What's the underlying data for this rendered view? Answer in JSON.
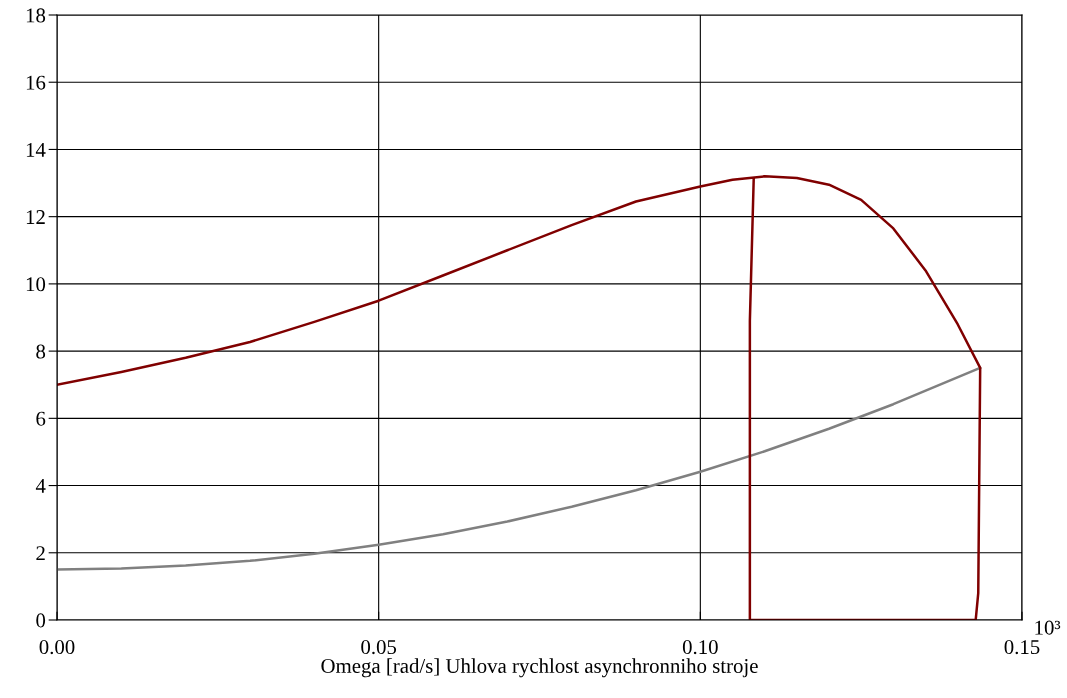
{
  "chart_data": {
    "type": "line",
    "xlabel": "Omega [rad/s] Uhlova rychlost asynchronniho stroje",
    "xlim": [
      0,
      0.15
    ],
    "xticks": [
      {
        "value": 0,
        "label": "0.00"
      },
      {
        "value": 0.05,
        "label": "0.05"
      },
      {
        "value": 0.1,
        "label": "0.10"
      },
      {
        "value": 0.15,
        "label": "0.15"
      }
    ],
    "ylim": [
      0,
      18
    ],
    "yticks": [
      0,
      2,
      4,
      6,
      8,
      10,
      12,
      14,
      16,
      18
    ],
    "grid": true,
    "line_style": "solid",
    "marker": "none",
    "annotations": [
      "10³"
    ],
    "series": [
      {
        "color": "#808080",
        "x": [
          0,
          0.01,
          0.02,
          0.03,
          0.04,
          0.05,
          0.06,
          0.07,
          0.08,
          0.09,
          0.1,
          0.11,
          0.12,
          0.13,
          0.1435
        ],
        "values": [
          1.5,
          1.53,
          1.62,
          1.76,
          1.97,
          2.24,
          2.55,
          2.93,
          3.37,
          3.86,
          4.41,
          5.02,
          5.69,
          6.42,
          7.5
        ]
      },
      {
        "color": "#800000",
        "x": [
          0,
          0.01,
          0.02,
          0.03,
          0.04,
          0.05,
          0.06,
          0.07,
          0.08,
          0.09,
          0.1,
          0.105,
          0.11,
          0.115,
          0.12,
          0.125,
          0.13,
          0.135,
          0.14,
          0.1435,
          0.1432,
          0.1428,
          0.1077,
          0.1077,
          0.1083
        ],
        "values": [
          7.0,
          7.38,
          7.8,
          8.27,
          8.87,
          9.5,
          10.25,
          11.0,
          11.75,
          12.45,
          12.9,
          13.1,
          13.2,
          13.15,
          12.95,
          12.5,
          11.65,
          10.4,
          8.8,
          7.5,
          0.8,
          0,
          0,
          8.9,
          13.15
        ]
      }
    ]
  }
}
